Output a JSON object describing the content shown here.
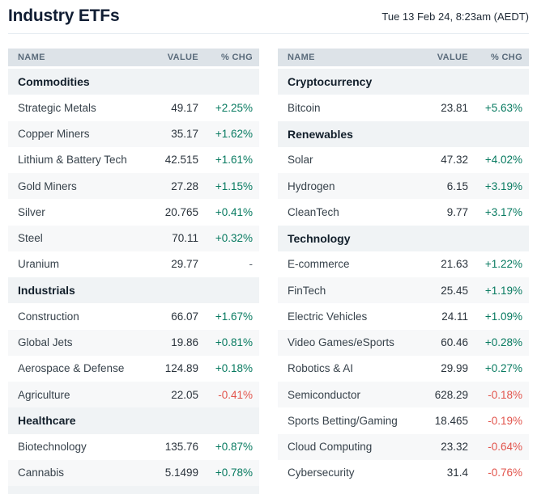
{
  "header": {
    "title": "Industry ETFs",
    "timestamp": "Tue 13 Feb 24, 8:23am (AEDT)"
  },
  "table": {
    "columns": [
      "NAME",
      "VALUE",
      "% CHG"
    ]
  },
  "left_column": {
    "partial_next_section": true,
    "sections": [
      {
        "name": "Commodities",
        "rows": [
          {
            "name": "Strategic Metals",
            "value": "49.17",
            "chg": "+2.25%",
            "direction": "up"
          },
          {
            "name": "Copper Miners",
            "value": "35.17",
            "chg": "+1.62%",
            "direction": "up"
          },
          {
            "name": "Lithium & Battery Tech",
            "value": "42.515",
            "chg": "+1.61%",
            "direction": "up"
          },
          {
            "name": "Gold Miners",
            "value": "27.28",
            "chg": "+1.15%",
            "direction": "up"
          },
          {
            "name": "Silver",
            "value": "20.765",
            "chg": "+0.41%",
            "direction": "up"
          },
          {
            "name": "Steel",
            "value": "70.11",
            "chg": "+0.32%",
            "direction": "up"
          },
          {
            "name": "Uranium",
            "value": "29.77",
            "chg": "-",
            "direction": "flat"
          }
        ]
      },
      {
        "name": "Industrials",
        "rows": [
          {
            "name": "Construction",
            "value": "66.07",
            "chg": "+1.67%",
            "direction": "up"
          },
          {
            "name": "Global Jets",
            "value": "19.86",
            "chg": "+0.81%",
            "direction": "up"
          },
          {
            "name": "Aerospace & Defense",
            "value": "124.89",
            "chg": "+0.18%",
            "direction": "up"
          },
          {
            "name": "Agriculture",
            "value": "22.05",
            "chg": "-0.41%",
            "direction": "down"
          }
        ]
      },
      {
        "name": "Healthcare",
        "rows": [
          {
            "name": "Biotechnology",
            "value": "135.76",
            "chg": "+0.87%",
            "direction": "up"
          },
          {
            "name": "Cannabis",
            "value": "5.1499",
            "chg": "+0.78%",
            "direction": "up"
          }
        ]
      }
    ]
  },
  "right_column": {
    "partial_next_section": false,
    "sections": [
      {
        "name": "Cryptocurrency",
        "rows": [
          {
            "name": "Bitcoin",
            "value": "23.81",
            "chg": "+5.63%",
            "direction": "up"
          }
        ]
      },
      {
        "name": "Renewables",
        "rows": [
          {
            "name": "Solar",
            "value": "47.32",
            "chg": "+4.02%",
            "direction": "up"
          },
          {
            "name": "Hydrogen",
            "value": "6.15",
            "chg": "+3.19%",
            "direction": "up"
          },
          {
            "name": "CleanTech",
            "value": "9.77",
            "chg": "+3.17%",
            "direction": "up"
          }
        ]
      },
      {
        "name": "Technology",
        "rows": [
          {
            "name": "E-commerce",
            "value": "21.63",
            "chg": "+1.22%",
            "direction": "up"
          },
          {
            "name": "FinTech",
            "value": "25.45",
            "chg": "+1.19%",
            "direction": "up"
          },
          {
            "name": "Electric Vehicles",
            "value": "24.11",
            "chg": "+1.09%",
            "direction": "up"
          },
          {
            "name": "Video Games/eSports",
            "value": "60.46",
            "chg": "+0.28%",
            "direction": "up"
          },
          {
            "name": "Robotics & AI",
            "value": "29.99",
            "chg": "+0.27%",
            "direction": "up"
          },
          {
            "name": "Semiconductor",
            "value": "628.29",
            "chg": "-0.18%",
            "direction": "down"
          },
          {
            "name": "Sports Betting/Gaming",
            "value": "18.465",
            "chg": "-0.19%",
            "direction": "down"
          },
          {
            "name": "Cloud Computing",
            "value": "23.32",
            "chg": "-0.64%",
            "direction": "down"
          },
          {
            "name": "Cybersecurity",
            "value": "31.4",
            "chg": "-0.76%",
            "direction": "down"
          }
        ]
      }
    ]
  },
  "colors": {
    "positive": "#077a60",
    "negative": "#e2544c",
    "neutral": "#55606a",
    "column_header_bg": "#dde3e8",
    "section_header_bg": "#f0f3f5",
    "row_stripe_bg": "#f7f8f9",
    "title_color": "#101d33"
  }
}
